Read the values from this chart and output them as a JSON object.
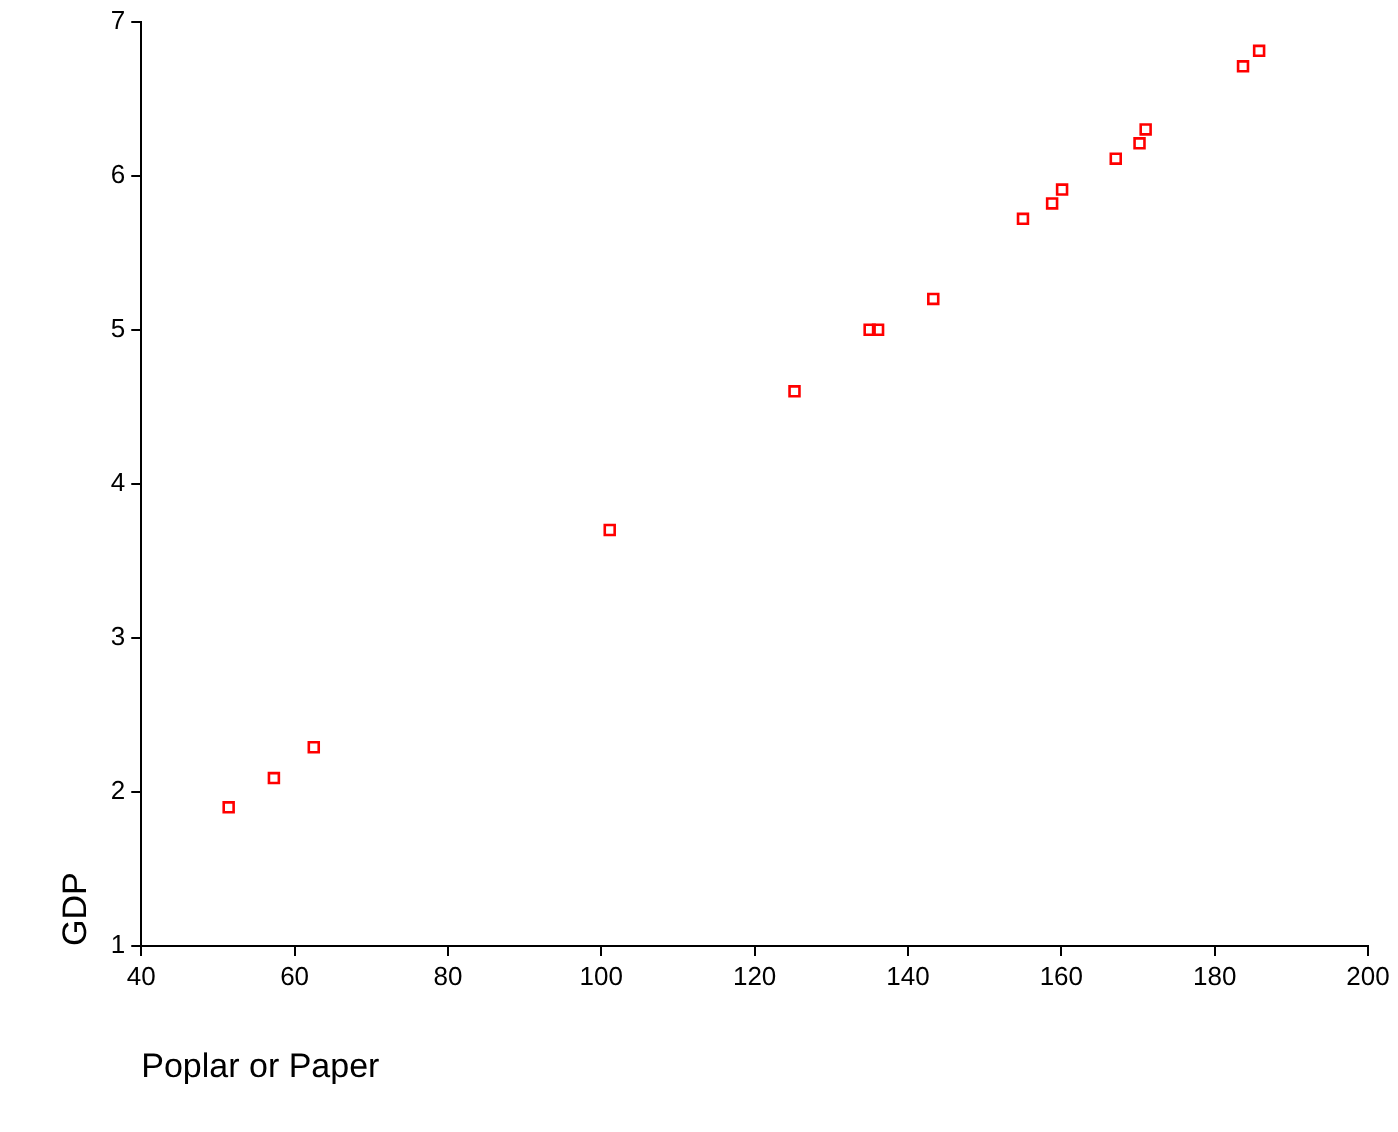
{
  "chart_data": {
    "type": "scatter",
    "xlabel": "Poplar or Paper",
    "ylabel": "GDP",
    "x": [
      51.4,
      57.3,
      62.5,
      101.1,
      125.2,
      135.0,
      136.1,
      143.3,
      155.0,
      158.8,
      160.1,
      167.1,
      170.2,
      171.0,
      183.7,
      185.8
    ],
    "series": [
      {
        "color": "#ff0000",
        "values": [
          1.9,
          2.09,
          2.29,
          3.7,
          4.6,
          5.0,
          5.0,
          5.2,
          5.72,
          5.82,
          5.91,
          6.11,
          6.21,
          6.3,
          6.71,
          6.81
        ]
      }
    ],
    "xlim": [
      40,
      200
    ],
    "xticks": [
      40,
      60,
      80,
      100,
      120,
      140,
      160,
      180,
      200
    ],
    "ylim": [
      1,
      7
    ],
    "yticks": [
      1,
      2,
      3,
      4,
      5,
      6,
      7
    ],
    "grid": false,
    "legend": false,
    "marker": "square"
  }
}
